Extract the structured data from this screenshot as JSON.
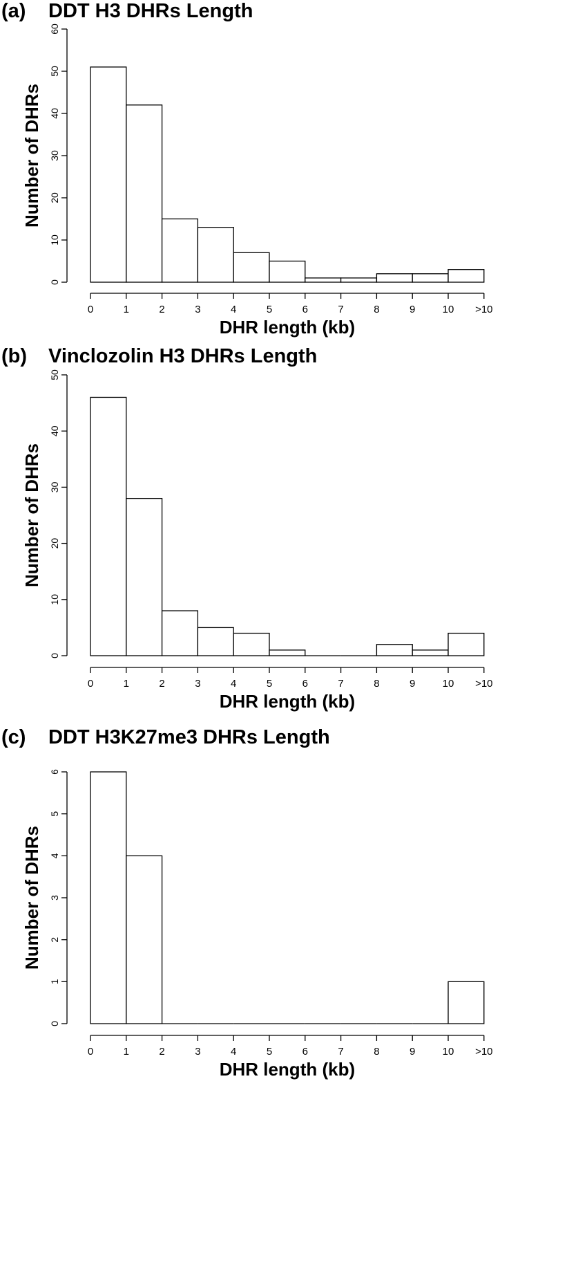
{
  "figure": {
    "panels": [
      {
        "letter": "(a)",
        "title": "DDT H3 DHRs Length"
      },
      {
        "letter": "(b)",
        "title": "Vinclozolin H3  DHRs Length"
      },
      {
        "letter": "(c)",
        "title": "DDT H3K27me3 DHRs Length"
      }
    ]
  },
  "chart_data": [
    {
      "type": "bar",
      "title": "DDT H3 DHRs Length",
      "xlabel": "DHR length (kb)",
      "ylabel": "Number of DHRs",
      "categories": [
        "0-1",
        "1-2",
        "2-3",
        "3-4",
        "4-5",
        "5-6",
        "6-7",
        "7-8",
        "8-9",
        "9-10",
        ">10"
      ],
      "values": [
        51,
        42,
        15,
        13,
        7,
        5,
        1,
        1,
        2,
        2,
        3
      ],
      "x_tick_labels": [
        "0",
        "1",
        "2",
        "3",
        "4",
        "5",
        "6",
        "7",
        "8",
        "9",
        "10",
        ">10"
      ],
      "y_ticks": [
        0,
        10,
        20,
        30,
        40,
        50,
        60
      ],
      "ylim": [
        0,
        60
      ],
      "grid": false,
      "legend": "none"
    },
    {
      "type": "bar",
      "title": "Vinclozolin H3  DHRs Length",
      "xlabel": "DHR length (kb)",
      "ylabel": "Number of DHRs",
      "categories": [
        "0-1",
        "1-2",
        "2-3",
        "3-4",
        "4-5",
        "5-6",
        "6-7",
        "7-8",
        "8-9",
        "9-10",
        ">10"
      ],
      "values": [
        46,
        28,
        8,
        5,
        4,
        1,
        0,
        0,
        2,
        1,
        4
      ],
      "x_tick_labels": [
        "0",
        "1",
        "2",
        "3",
        "4",
        "5",
        "6",
        "7",
        "8",
        "9",
        "10",
        ">10"
      ],
      "y_ticks": [
        0,
        10,
        20,
        30,
        40,
        50
      ],
      "ylim": [
        0,
        50
      ],
      "grid": false,
      "legend": "none"
    },
    {
      "type": "bar",
      "title": "DDT H3K27me3 DHRs Length",
      "xlabel": "DHR length (kb)",
      "ylabel": "Number of DHRs",
      "categories": [
        "0-1",
        "1-2",
        "2-3",
        "3-4",
        "4-5",
        "5-6",
        "6-7",
        "7-8",
        "8-9",
        "9-10",
        ">10"
      ],
      "values": [
        6,
        4,
        0,
        0,
        0,
        0,
        0,
        0,
        0,
        0,
        1
      ],
      "x_tick_labels": [
        "0",
        "1",
        "2",
        "3",
        "4",
        "5",
        "6",
        "7",
        "8",
        "9",
        "10",
        ">10"
      ],
      "y_ticks": [
        0,
        1,
        2,
        3,
        4,
        5,
        6
      ],
      "ylim": [
        0,
        6
      ],
      "grid": false,
      "legend": "none"
    }
  ]
}
